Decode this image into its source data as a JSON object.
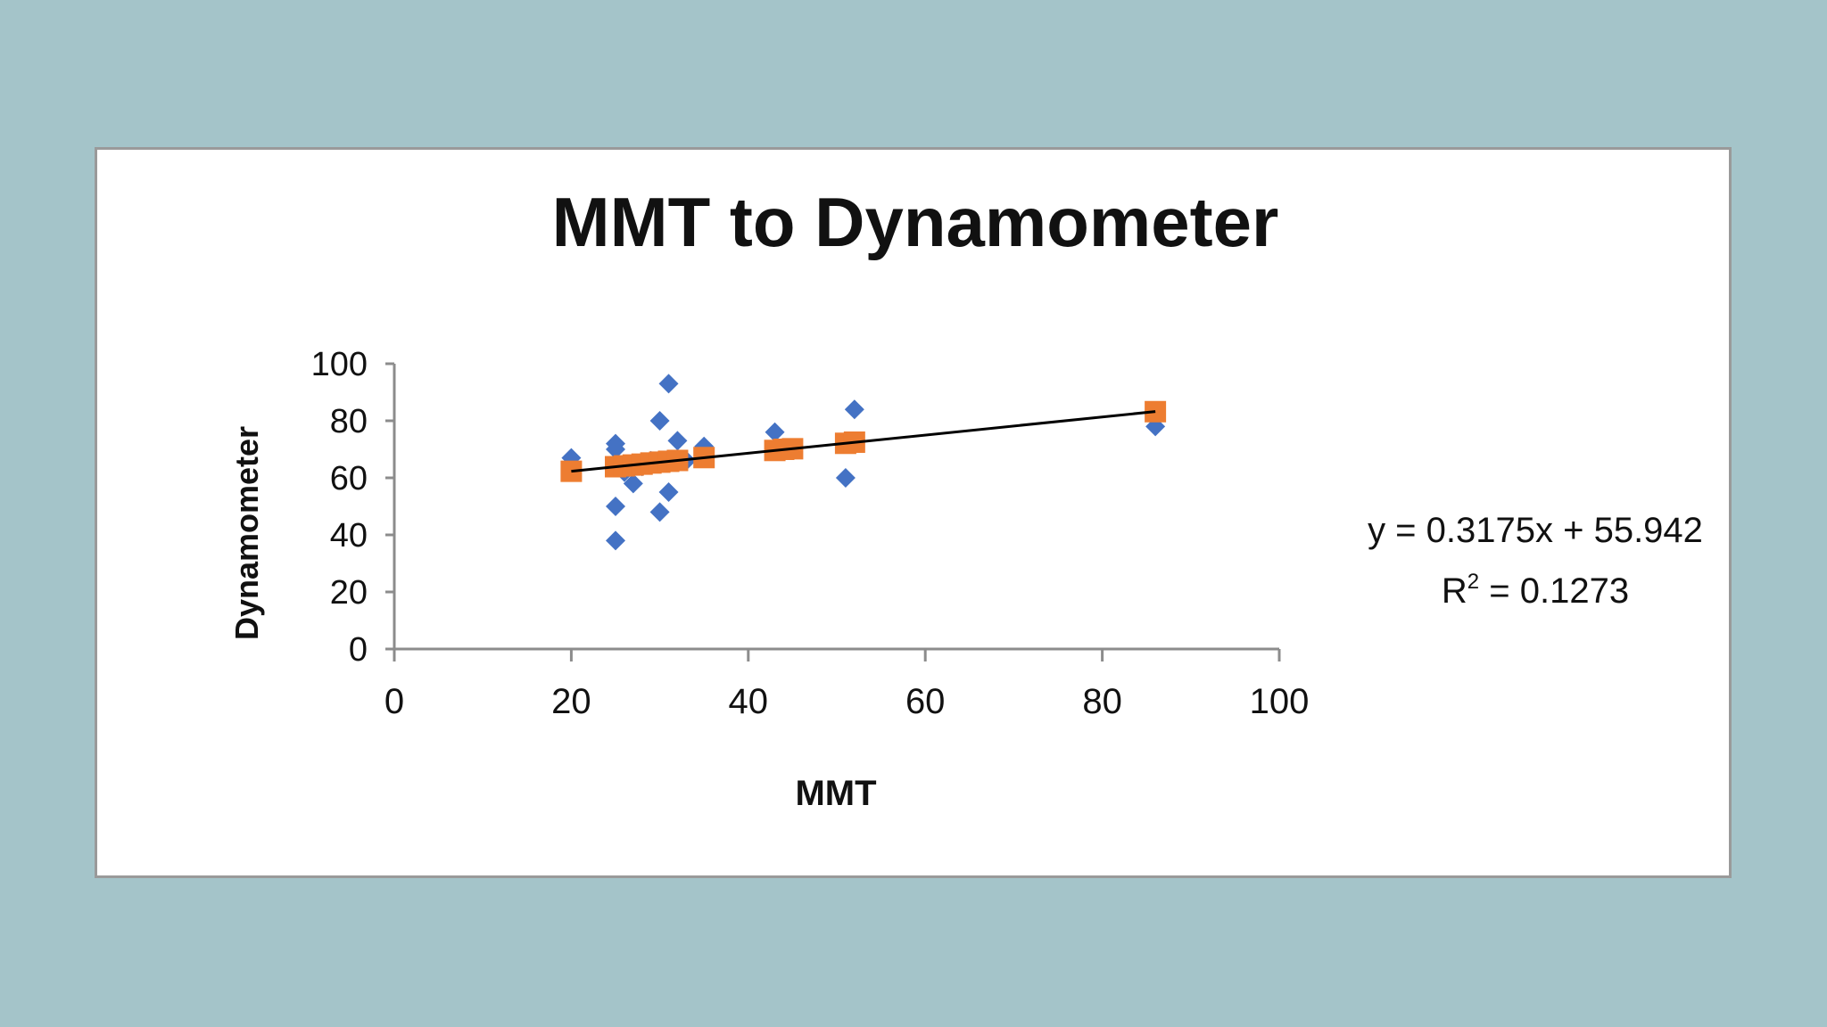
{
  "chart_data": {
    "type": "scatter",
    "title": "MMT to Dynamometer",
    "xlabel": "MMT",
    "ylabel": "Dynamometer",
    "xlim": [
      0,
      100
    ],
    "ylim": [
      0,
      100
    ],
    "x_ticks": [
      "0",
      "20",
      "40",
      "60",
      "80",
      "100"
    ],
    "y_ticks": [
      "0",
      "20",
      "40",
      "60",
      "80",
      "100"
    ],
    "grid": false,
    "legend": "none",
    "colors": {
      "observed": "#4472c4",
      "predicted": "#ed7d31",
      "trendline": "#000000",
      "axis": "#8c8c8c"
    },
    "series": [
      {
        "marker": "diamond",
        "points": [
          [
            20,
            67
          ],
          [
            25,
            72
          ],
          [
            25,
            70
          ],
          [
            25,
            50
          ],
          [
            25,
            38
          ],
          [
            26,
            62
          ],
          [
            27,
            58
          ],
          [
            28,
            64
          ],
          [
            29,
            66
          ],
          [
            30,
            80
          ],
          [
            30,
            48
          ],
          [
            31,
            93
          ],
          [
            31,
            55
          ],
          [
            32,
            73
          ],
          [
            33,
            66
          ],
          [
            35,
            71
          ],
          [
            43,
            76
          ],
          [
            44,
            70
          ],
          [
            51,
            60
          ],
          [
            52,
            84
          ],
          [
            86,
            78
          ]
        ]
      },
      {
        "marker": "square",
        "points": [
          [
            20,
            62.3
          ],
          [
            25,
            63.9
          ],
          [
            26,
            64.2
          ],
          [
            27,
            64.5
          ],
          [
            28,
            64.8
          ],
          [
            29,
            65.2
          ],
          [
            30,
            65.5
          ],
          [
            31,
            65.8
          ],
          [
            32,
            66.1
          ],
          [
            35,
            67.1
          ],
          [
            43,
            69.6
          ],
          [
            44,
            70.0
          ],
          [
            45,
            70.2
          ],
          [
            51,
            72.1
          ],
          [
            52,
            72.5
          ],
          [
            86,
            83.2
          ]
        ]
      }
    ],
    "trendline": {
      "slope": 0.3175,
      "intercept": 55.942,
      "x_range": [
        20,
        86
      ],
      "equation": "y = 0.3175x + 55.942",
      "r2_label": "R",
      "r2_sup": "2",
      "r2_value": " = 0.1273"
    }
  }
}
